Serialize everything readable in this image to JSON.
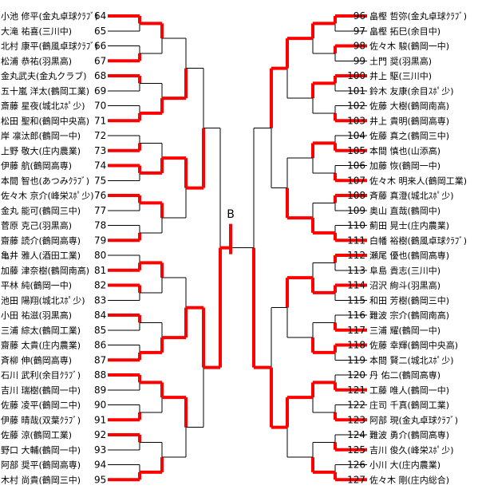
{
  "block_label": "B",
  "colors": {
    "win": "#ff0000",
    "line": "#000000",
    "bg": "#ffffff"
  },
  "left_players": [
    {
      "num": "64",
      "name": "小池 修平(金丸卓球ｸﾗﾌﾞ)"
    },
    {
      "num": "65",
      "name": "大滝 祐喜(三川中)"
    },
    {
      "num": "66",
      "name": "北村 康平(鶴風卓球ｸﾗﾌﾞ)"
    },
    {
      "num": "67",
      "name": "松浦 恭祐(羽黒高)"
    },
    {
      "num": "68",
      "name": "金丸武夫(金丸クラブ)"
    },
    {
      "num": "69",
      "name": "五十嵐 洋太(鶴岡工業)"
    },
    {
      "num": "70",
      "name": "斎藤 星夜(城北ｽﾎﾟ少)"
    },
    {
      "num": "71",
      "name": "松田 聖和(鶴岡中央高)"
    },
    {
      "num": "72",
      "name": "岸 凛汰郎(鶴岡一中)"
    },
    {
      "num": "73",
      "name": "上野 敬大(庄内農業)"
    },
    {
      "num": "74",
      "name": "伊藤 航(鶴岡高専)"
    },
    {
      "num": "75",
      "name": "本間 智也(あつみｸﾗﾌﾞ)"
    },
    {
      "num": "76",
      "name": "佐々木 京介(峰栄ｽﾎﾟ少)"
    },
    {
      "num": "77",
      "name": "金丸 能可(鶴岡三中)"
    },
    {
      "num": "78",
      "name": "菅原 克己(羽黒高)"
    },
    {
      "num": "79",
      "name": "齋藤 読介(鶴岡高専)"
    },
    {
      "num": "80",
      "name": "亀井 雅人(酒田工業)"
    },
    {
      "num": "81",
      "name": "加藤 津奈樹(鶴岡南高)"
    },
    {
      "num": "82",
      "name": "平林 純(鶴岡一中)"
    },
    {
      "num": "83",
      "name": "池田 陽翔(城北ｽﾎﾟ少)"
    },
    {
      "num": "84",
      "name": "小田 祐滋(羽黒高)"
    },
    {
      "num": "85",
      "name": "三浦 綜太(鶴岡工業)"
    },
    {
      "num": "86",
      "name": "齋藤 太貴(庄内農業)"
    },
    {
      "num": "87",
      "name": "斉柳 伸(鶴岡高専)"
    },
    {
      "num": "88",
      "name": "石川 武利(余目ｸﾗﾌﾞ)"
    },
    {
      "num": "89",
      "name": "吉川 瑞樹(鶴岡一中)"
    },
    {
      "num": "90",
      "name": "佐藤 凌平(鶴岡二中)"
    },
    {
      "num": "91",
      "name": "伊藤 晴哉(双葉ｸﾗﾌﾞ)"
    },
    {
      "num": "92",
      "name": "佐藤 涼(鶴岡工業)"
    },
    {
      "num": "93",
      "name": "野口 大輔(鶴岡一中)"
    },
    {
      "num": "94",
      "name": "阿部 奨平(鶴岡高専)"
    },
    {
      "num": "95",
      "name": "木村 尚貴(鶴岡三中)"
    }
  ],
  "right_players": [
    {
      "num": "96",
      "name": "畠樫 哲弥(金丸卓球ｸﾗﾌﾞ)"
    },
    {
      "num": "97",
      "name": "畠樫 拓巳(余目中)"
    },
    {
      "num": "98",
      "name": "佐々木 駿(鶴岡一中)"
    },
    {
      "num": "99",
      "name": "土門 奨(羽黒高)"
    },
    {
      "num": "100",
      "name": "井上 駆(三川中)"
    },
    {
      "num": "101",
      "name": "鈴木 友康(余目ｽﾎﾟ少)"
    },
    {
      "num": "102",
      "name": "佐藤 大樹(鶴岡南高)"
    },
    {
      "num": "103",
      "name": "井上 貴明(鶴岡高専)"
    },
    {
      "num": "104",
      "name": "佐藤 真之(鶴岡三中)"
    },
    {
      "num": "105",
      "name": "本間 慎也(山添高)"
    },
    {
      "num": "106",
      "name": "加藤 恢(鶴岡一中)"
    },
    {
      "num": "107",
      "name": "佐々木 明来人(鶴岡工業)"
    },
    {
      "num": "108",
      "name": "斉藤 真澄(城北ｽﾎﾟ少)"
    },
    {
      "num": "109",
      "name": "奥山 直哉(鶴岡中)"
    },
    {
      "num": "110",
      "name": "薊田 晃士(庄内農業)"
    },
    {
      "num": "111",
      "name": "白幡 裕樹(鶴風卓球ｸﾗﾌﾞ)"
    },
    {
      "num": "112",
      "name": "瀬尾 優也(鶴岡高専)"
    },
    {
      "num": "113",
      "name": "阜島 貴志(三川中)"
    },
    {
      "num": "114",
      "name": "沼沢 絢斗(羽黒高)"
    },
    {
      "num": "115",
      "name": "和田 芳樹(鶴岡三中)"
    },
    {
      "num": "116",
      "name": "難波 宗介(鶴岡南高)"
    },
    {
      "num": "117",
      "name": "三浦 耀(鶴岡一中)"
    },
    {
      "num": "118",
      "name": "佐藤 幸輝(鶴岡中央高)"
    },
    {
      "num": "119",
      "name": "本間 賢二(城北ｽﾎﾟ少)"
    },
    {
      "num": "120",
      "name": "丹 佑二(鶴岡高専)"
    },
    {
      "num": "121",
      "name": "工藤 唯人(鶴岡一中)"
    },
    {
      "num": "122",
      "name": "庄司 千真(鶴岡工業)"
    },
    {
      "num": "123",
      "name": "阿部 現(金丸卓球ｸﾗﾌﾞ)"
    },
    {
      "num": "124",
      "name": "難波 勇介(鶴岡高専)"
    },
    {
      "num": "125",
      "name": "吉川 俊久(峰栄ｽﾎﾟ少)"
    },
    {
      "num": "126",
      "name": "小川 大(庄内農業)"
    },
    {
      "num": "127",
      "name": "佐々木 剛(庄内総合)"
    }
  ],
  "results": {
    "left": [
      [
        0,
        1,
        0,
        1,
        1,
        0,
        0,
        1,
        1,
        0,
        0,
        1,
        0,
        1,
        0,
        1
      ],
      [
        0,
        1,
        1,
        0,
        0,
        1,
        0,
        1
      ],
      [
        1,
        0,
        1,
        0
      ],
      [
        1,
        0
      ],
      [
        1
      ]
    ],
    "right": [
      [
        0,
        0,
        0,
        1,
        1,
        1,
        0,
        1,
        0,
        0,
        1,
        0,
        1,
        1,
        1,
        1
      ],
      [
        0,
        0,
        0,
        1,
        1,
        1,
        0,
        1
      ],
      [
        0,
        1,
        0,
        0
      ],
      [
        0,
        1
      ],
      [
        1
      ]
    ]
  }
}
